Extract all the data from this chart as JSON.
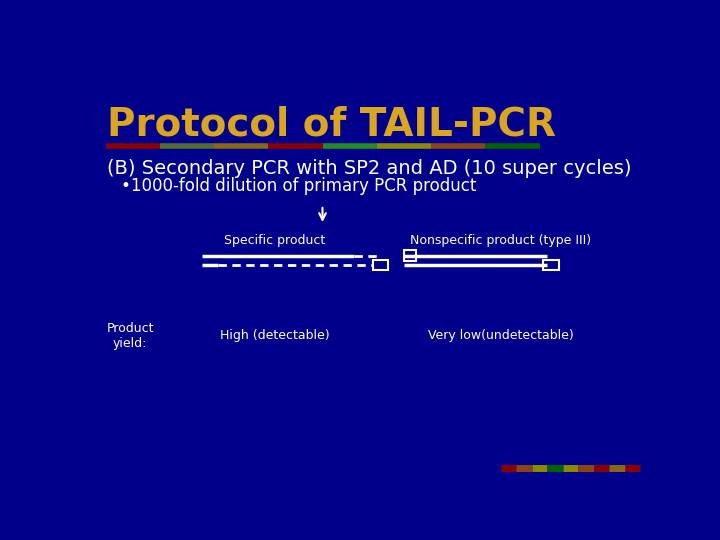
{
  "title": "Protocol of TAIL-PCR",
  "title_color": "#DAA520",
  "title_fontsize": 28,
  "background_color": "#00008B",
  "subtitle": "(B) Secondary PCR with SP2 and AD (10 super cycles)",
  "subtitle_color": "#FFFFFF",
  "subtitle_fontsize": 14,
  "bullet": "•1000-fold dilution of primary PCR product",
  "bullet_color": "#FFFFFF",
  "bullet_fontsize": 12,
  "specific_label": "Specific product",
  "nonspecific_label": "Nonspecific product (type III)",
  "label_color": "#FFFFFF",
  "label_fontsize": 9,
  "high_label": "High (detectable)",
  "low_label": "Very low(undetectable)",
  "yield_label": "Product\nyield:",
  "yield_color": "#FFFFFF",
  "line_color": "#FFFFFF",
  "arrow_color": "#FFFFFF",
  "sep_colors": [
    "#8B0000",
    "#556B2F",
    "#8B6914",
    "#8B0000",
    "#228B22",
    "#8B8B00",
    "#8B4513",
    "#006400"
  ],
  "bot_colors": [
    "#8B0000",
    "#8B4513",
    "#8B8B00",
    "#006400",
    "#8B8B00",
    "#8B4513",
    "#8B0000",
    "#8B6914",
    "#8B0000"
  ]
}
